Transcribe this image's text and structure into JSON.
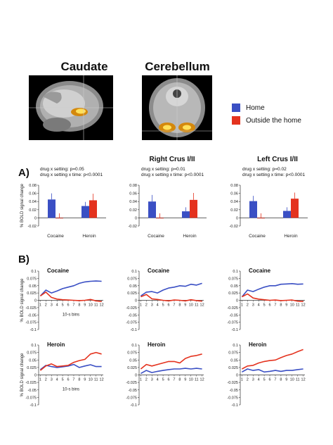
{
  "colors": {
    "home": "#3a4fc4",
    "outside": "#e4321e"
  },
  "regions": {
    "caudate_title": "Caudate",
    "cerebellum_title": "Cerebellum",
    "right_crus": "Right Crus I/II",
    "left_crus": "Left Crus I/II"
  },
  "legend": {
    "home": "Home",
    "outside": "Outside the home"
  },
  "panel_labels": {
    "a": "A)",
    "b": "B)"
  },
  "stats": {
    "caudate": {
      "line1": "drug x setting: p=0.05",
      "line2": "drug x setting x time: p<0.0001"
    },
    "right_crus": {
      "line1": "drug x setting: p=0.01",
      "line2": "drug x setting x time: p<0.0001"
    },
    "left_crus": {
      "line1": "drug x setting: p=0.02",
      "line2": "drug x setting x time: p<0.0001"
    }
  },
  "chart_data": [
    {
      "type": "bar",
      "region": "Caudate",
      "ylabel": "% BOLD signal change",
      "ylim": [
        -0.02,
        0.08
      ],
      "yticks": [
        "0.08",
        "0.06",
        "0.04",
        "0.02",
        "0",
        "-0.02"
      ],
      "categories": [
        "Cocaine",
        "Heroin"
      ],
      "series": [
        {
          "name": "Home",
          "values": [
            0.045,
            0.029
          ],
          "errors": [
            0.015,
            0.01
          ]
        },
        {
          "name": "Outside the home",
          "values": [
            -0.001,
            0.043
          ],
          "errors": [
            0.012,
            0.016
          ]
        }
      ]
    },
    {
      "type": "bar",
      "region": "Right Crus I/II",
      "ylabel": "",
      "ylim": [
        -0.02,
        0.08
      ],
      "yticks": [
        "0.08",
        "0.06",
        "0.04",
        "0.02",
        "0",
        "-0.02"
      ],
      "categories": [
        "Cocaine",
        "Heroin"
      ],
      "series": [
        {
          "name": "Home",
          "values": [
            0.04,
            0.016
          ],
          "errors": [
            0.016,
            0.01
          ]
        },
        {
          "name": "Outside the home",
          "values": [
            -0.001,
            0.044
          ],
          "errors": [
            0.012,
            0.017
          ]
        }
      ]
    },
    {
      "type": "bar",
      "region": "Left Crus I/II",
      "ylabel": "",
      "ylim": [
        -0.02,
        0.08
      ],
      "yticks": [
        "0.08",
        "0.06",
        "0.04",
        "0.02",
        "0",
        "-0.02"
      ],
      "categories": [
        "Cocaine",
        "Heroin"
      ],
      "series": [
        {
          "name": "Home",
          "values": [
            0.041,
            0.017
          ],
          "errors": [
            0.013,
            0.009
          ]
        },
        {
          "name": "Outside the home",
          "values": [
            -0.001,
            0.047
          ],
          "errors": [
            0.012,
            0.015
          ]
        }
      ]
    },
    {
      "type": "line",
      "region": "Caudate",
      "title": "Cocaine",
      "ylabel": "% BOLD signal change",
      "xlabel": "10-s bins",
      "ylim": [
        -0.1,
        0.1
      ],
      "yticks": [
        "0.1",
        "0.075",
        "0.05",
        "0.025",
        "0",
        "-0.025",
        "-0.05",
        "-0.075",
        "-0.1"
      ],
      "x": [
        1,
        2,
        3,
        4,
        5,
        6,
        7,
        8,
        9,
        10,
        11,
        12
      ],
      "series": [
        {
          "name": "Home",
          "values": [
            0.015,
            0.035,
            0.025,
            0.032,
            0.04,
            0.045,
            0.05,
            0.058,
            0.063,
            0.065,
            0.066,
            0.065
          ]
        },
        {
          "name": "Outside the home",
          "values": [
            0.015,
            0.028,
            0.01,
            0.004,
            0.002,
            0.001,
            0.0,
            -0.001,
            0.0,
            0.003,
            -0.002,
            -0.004
          ]
        }
      ]
    },
    {
      "type": "line",
      "region": "Right Crus I/II",
      "title": "Cocaine",
      "ylabel": "",
      "xlabel": "",
      "ylim": [
        -0.1,
        0.1
      ],
      "yticks": [
        "0.1",
        "0.075",
        "0.05",
        "0.025",
        "0",
        "-0.025",
        "-0.05",
        "-0.075",
        "-0.1"
      ],
      "x": [
        1,
        2,
        3,
        4,
        5,
        6,
        7,
        8,
        9,
        10,
        11,
        12
      ],
      "series": [
        {
          "name": "Home",
          "values": [
            0.015,
            0.028,
            0.03,
            0.025,
            0.035,
            0.042,
            0.045,
            0.05,
            0.048,
            0.055,
            0.052,
            0.058
          ]
        },
        {
          "name": "Outside the home",
          "values": [
            0.012,
            0.02,
            0.005,
            0.003,
            0.0,
            -0.002,
            0.001,
            0.0,
            -0.002,
            0.002,
            -0.001,
            -0.003
          ]
        }
      ]
    },
    {
      "type": "line",
      "region": "Left Crus I/II",
      "title": "Cocaine",
      "ylabel": "",
      "xlabel": "",
      "ylim": [
        -0.1,
        0.1
      ],
      "yticks": [
        "0.1",
        "0.075",
        "0.05",
        "0.025",
        "0",
        "-0.025",
        "-0.05",
        "-0.075",
        "-0.1"
      ],
      "x": [
        1,
        2,
        3,
        4,
        5,
        6,
        7,
        8,
        9,
        10,
        11,
        12
      ],
      "series": [
        {
          "name": "Home",
          "values": [
            0.012,
            0.035,
            0.03,
            0.038,
            0.045,
            0.05,
            0.05,
            0.055,
            0.056,
            0.057,
            0.055,
            0.056
          ]
        },
        {
          "name": "Outside the home",
          "values": [
            0.012,
            0.022,
            0.008,
            0.004,
            0.002,
            0.0,
            0.001,
            -0.001,
            0.0,
            0.001,
            -0.003,
            -0.004
          ]
        }
      ]
    },
    {
      "type": "line",
      "region": "Caudate",
      "title": "Heroin",
      "ylabel": "% BOLD signal change",
      "xlabel": "10-s bins",
      "ylim": [
        -0.1,
        0.1
      ],
      "yticks": [
        "0.1",
        "0.075",
        "0.05",
        "0.025",
        "0",
        "-0.025",
        "-0.05",
        "-0.075",
        "-0.1"
      ],
      "x": [
        1,
        2,
        3,
        4,
        5,
        6,
        7,
        8,
        9,
        10,
        11,
        12
      ],
      "series": [
        {
          "name": "Home",
          "values": [
            0.018,
            0.032,
            0.028,
            0.025,
            0.027,
            0.03,
            0.035,
            0.025,
            0.03,
            0.034,
            0.028,
            0.028
          ]
        },
        {
          "name": "Outside the home",
          "values": [
            0.015,
            0.03,
            0.037,
            0.028,
            0.03,
            0.032,
            0.042,
            0.048,
            0.052,
            0.07,
            0.075,
            0.07
          ]
        }
      ]
    },
    {
      "type": "line",
      "region": "Right Crus I/II",
      "title": "Heroin",
      "ylabel": "",
      "xlabel": "",
      "ylim": [
        -0.1,
        0.1
      ],
      "yticks": [
        "0.1",
        "0.075",
        "0.05",
        "0.025",
        "0",
        "-0.025",
        "-0.05",
        "-0.075",
        "-0.1"
      ],
      "x": [
        1,
        2,
        3,
        4,
        5,
        6,
        7,
        8,
        9,
        10,
        11,
        12
      ],
      "series": [
        {
          "name": "Home",
          "values": [
            0.005,
            0.015,
            0.008,
            0.012,
            0.015,
            0.018,
            0.02,
            0.02,
            0.022,
            0.02,
            0.022,
            0.02
          ]
        },
        {
          "name": "Outside the home",
          "values": [
            0.02,
            0.035,
            0.03,
            0.035,
            0.04,
            0.045,
            0.045,
            0.04,
            0.055,
            0.062,
            0.065,
            0.07
          ]
        }
      ]
    },
    {
      "type": "line",
      "region": "Left Crus I/II",
      "title": "Heroin",
      "ylabel": "",
      "xlabel": "",
      "ylim": [
        -0.1,
        0.1
      ],
      "yticks": [
        "0.1",
        "0.075",
        "0.05",
        "0.025",
        "0",
        "-0.025",
        "-0.05",
        "-0.075",
        "-0.1"
      ],
      "x": [
        1,
        2,
        3,
        4,
        5,
        6,
        7,
        8,
        9,
        10,
        11,
        12
      ],
      "series": [
        {
          "name": "Home",
          "values": [
            0.01,
            0.02,
            0.015,
            0.018,
            0.01,
            0.012,
            0.015,
            0.012,
            0.015,
            0.015,
            0.018,
            0.02
          ]
        },
        {
          "name": "Outside the home",
          "values": [
            0.02,
            0.03,
            0.032,
            0.04,
            0.045,
            0.048,
            0.05,
            0.058,
            0.065,
            0.07,
            0.078,
            0.085
          ]
        }
      ]
    }
  ]
}
